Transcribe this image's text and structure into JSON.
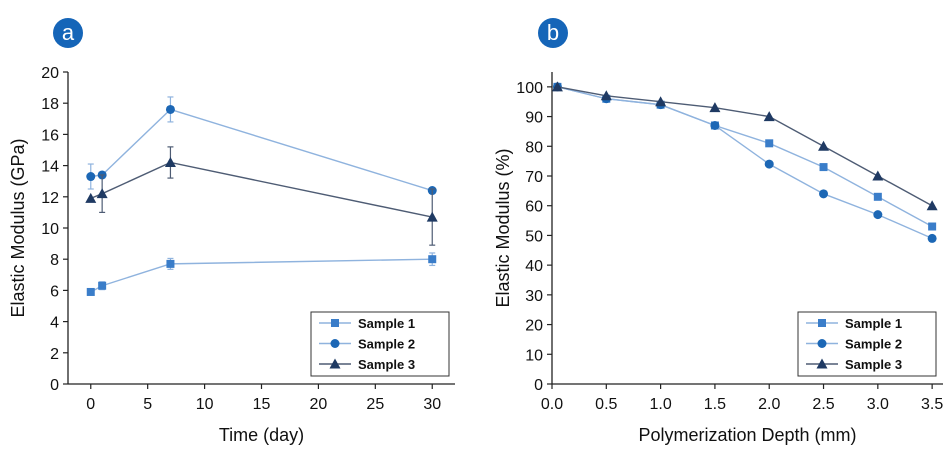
{
  "chart_data": [
    {
      "panel": "a",
      "type": "line",
      "xlabel": "Time (day)",
      "ylabel": "Elastic Modulus (GPa)",
      "xlim": [
        -2,
        32
      ],
      "ylim": [
        0,
        20
      ],
      "xticks": [
        0,
        5,
        10,
        15,
        20,
        25,
        30
      ],
      "yticks": [
        0,
        2,
        4,
        6,
        8,
        10,
        12,
        14,
        16,
        18,
        20
      ],
      "error_bars": true,
      "legend": "bottom-right",
      "series": [
        {
          "name": "Sample 1",
          "marker": "square",
          "color": "#3A7DC9",
          "line_color": "#8FB3DE",
          "x": [
            0,
            1,
            7,
            30
          ],
          "y": [
            5.9,
            6.3,
            7.7,
            8.0
          ],
          "err": [
            0.15,
            0.25,
            0.35,
            0.4
          ]
        },
        {
          "name": "Sample 2",
          "marker": "circle",
          "color": "#1C67B5",
          "line_color": "#8FB3DE",
          "x": [
            0,
            1,
            7,
            30
          ],
          "y": [
            13.3,
            13.4,
            17.6,
            12.4
          ],
          "err": [
            0.8,
            0.0,
            0.8,
            0.0
          ]
        },
        {
          "name": "Sample 3",
          "marker": "triangle",
          "color": "#1F3A63",
          "line_color": "#4E5C74",
          "x": [
            0,
            1,
            7,
            30
          ],
          "y": [
            11.9,
            12.2,
            14.2,
            10.7
          ],
          "err": [
            0.0,
            1.2,
            1.0,
            1.8
          ]
        }
      ]
    },
    {
      "panel": "b",
      "type": "line",
      "xlabel": "Polymerization Depth (mm)",
      "ylabel": "Elastic Modulus (%)",
      "xlim": [
        0,
        3.6
      ],
      "ylim": [
        0,
        105
      ],
      "xticks": [
        "0.0",
        "0.5",
        "1.0",
        "1.5",
        "2.0",
        "2.5",
        "3.0",
        "3.5"
      ],
      "yticks": [
        0,
        10,
        20,
        30,
        40,
        50,
        60,
        70,
        80,
        90,
        100
      ],
      "legend": "bottom-right",
      "series": [
        {
          "name": "Sample 1",
          "marker": "square",
          "color": "#3A7DC9",
          "line_color": "#8FB3DE",
          "x": [
            0.05,
            0.5,
            1.0,
            1.5,
            2.0,
            2.5,
            3.0,
            3.5
          ],
          "y": [
            100,
            96,
            94,
            87,
            81,
            73,
            63,
            53
          ]
        },
        {
          "name": "Sample 2",
          "marker": "circle",
          "color": "#1C67B5",
          "line_color": "#8FB3DE",
          "x": [
            0.05,
            0.5,
            1.0,
            1.5,
            2.0,
            2.5,
            3.0,
            3.5
          ],
          "y": [
            100,
            96,
            94,
            87,
            74,
            64,
            57,
            49
          ]
        },
        {
          "name": "Sample 3",
          "marker": "triangle",
          "color": "#1F3A63",
          "line_color": "#4E5C74",
          "x": [
            0.05,
            0.5,
            1.0,
            1.5,
            2.0,
            2.5,
            3.0,
            3.5
          ],
          "y": [
            100,
            97,
            95,
            93,
            90,
            80,
            70,
            60
          ]
        }
      ]
    }
  ]
}
